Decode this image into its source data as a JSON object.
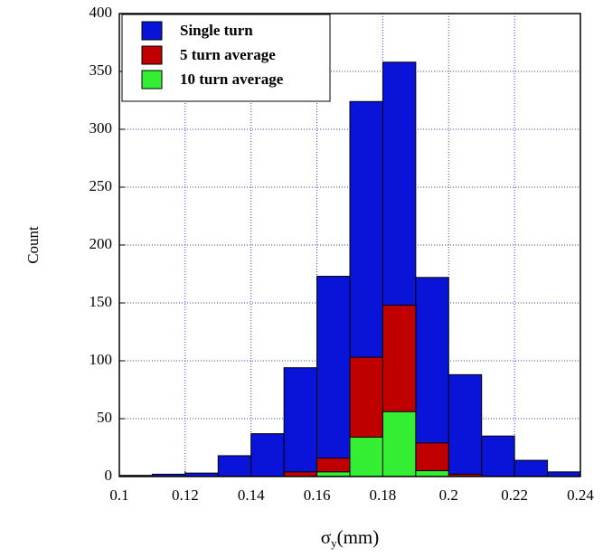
{
  "chart_data": {
    "type": "histogram",
    "xlabel": [
      "σ",
      "y",
      "(mm)"
    ],
    "ylabel": "Count",
    "bins": [
      0.1,
      0.11,
      0.12,
      0.13,
      0.14,
      0.15,
      0.16,
      0.17,
      0.18,
      0.19,
      0.2,
      0.21,
      0.22,
      0.23,
      0.24
    ],
    "series": [
      {
        "name": "Single turn",
        "color": "#0a14d8",
        "values": [
          1,
          2,
          3,
          18,
          37,
          94,
          173,
          324,
          358,
          172,
          88,
          35,
          14,
          4
        ]
      },
      {
        "name": "5 turn average",
        "color": "#c00000",
        "values": [
          0,
          0,
          0,
          0,
          0,
          4,
          16,
          103,
          148,
          29,
          2,
          0,
          0,
          0
        ]
      },
      {
        "name": "10 turn average",
        "color": "#33ee33",
        "values": [
          0,
          0,
          0,
          0,
          0,
          0,
          4,
          34,
          56,
          5,
          0,
          0,
          0,
          0
        ]
      }
    ],
    "xlim": [
      0.1,
      0.24
    ],
    "ylim": [
      0,
      400
    ],
    "xticks": [
      0.1,
      0.12,
      0.14,
      0.16,
      0.18,
      0.2,
      0.22,
      0.24
    ],
    "yticks": [
      0,
      50,
      100,
      150,
      200,
      250,
      300,
      350,
      400
    ],
    "grid": true,
    "legend": "upper-left"
  }
}
